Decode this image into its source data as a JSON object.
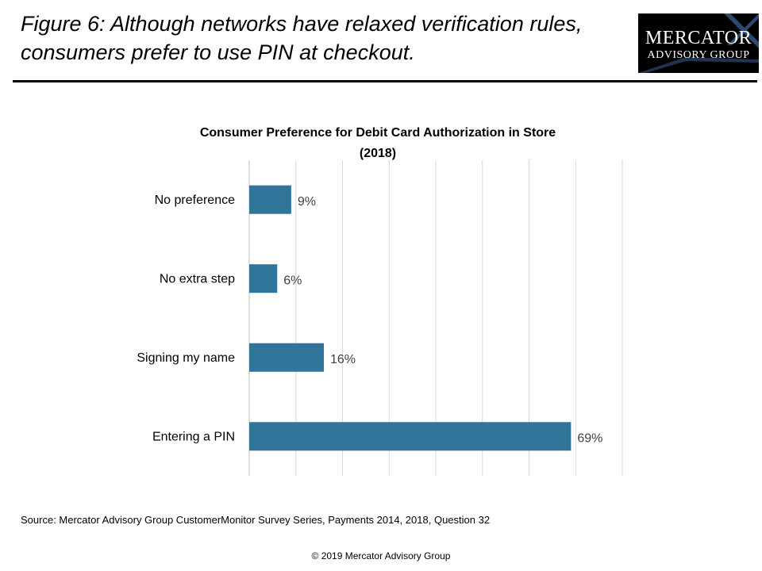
{
  "figure": {
    "title_line1": "Figure 6: Although networks have relaxed verification rules,",
    "title_line2": "consumers prefer to use PIN at checkout."
  },
  "logo": {
    "line1": "MERCATOR",
    "line2": "ADVISORY GROUP",
    "icon": "x-mark-icon"
  },
  "chart_data": {
    "type": "bar",
    "orientation": "horizontal",
    "title": "Consumer  Preference for Debit Card Authorization  in Store",
    "subtitle": "(2018)",
    "categories": [
      "No preference",
      "No extra step",
      "Signing my name",
      "Entering a PIN"
    ],
    "values": [
      9,
      6,
      16,
      69
    ],
    "value_labels": [
      "9%",
      "6%",
      "16%",
      "69%"
    ],
    "xlim": [
      0,
      80
    ],
    "grid": true,
    "bar_color": "#31769A"
  },
  "footer": {
    "source": "Source: Mercator Advisory Group CustomerMonitor Survey Series, Payments 2014, 2018,  Question 32",
    "copyright": "© 2019 Mercator Advisory Group"
  }
}
